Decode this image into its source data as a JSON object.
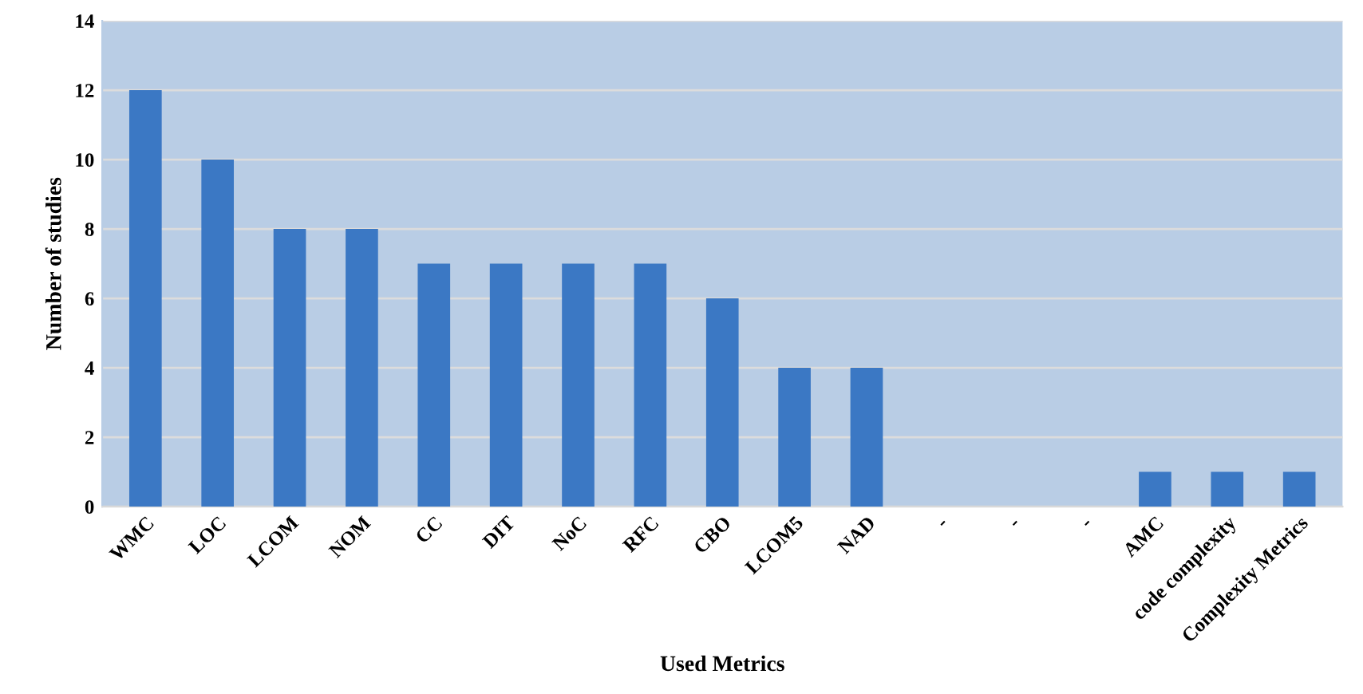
{
  "chart_data": {
    "type": "bar",
    "xlabel": "Used Metrics",
    "ylabel": "Number of studies",
    "categories": [
      "WMC",
      "LOC",
      "LCOM",
      "NOM",
      "CC",
      "DIT",
      "NoC",
      "RFC",
      "CBO",
      "LCOM5",
      "NAD",
      "-",
      "-",
      "-",
      "AMC",
      "code complexity",
      "Complexity Metrics"
    ],
    "values": [
      12,
      10,
      8,
      8,
      7,
      7,
      7,
      7,
      6,
      4,
      4,
      0,
      0,
      0,
      1,
      1,
      1
    ],
    "color": "#3b78c4",
    "ylim": [
      0,
      14
    ],
    "yticks": [
      0,
      2,
      4,
      6,
      8,
      10,
      12,
      14
    ],
    "grid": "y"
  }
}
